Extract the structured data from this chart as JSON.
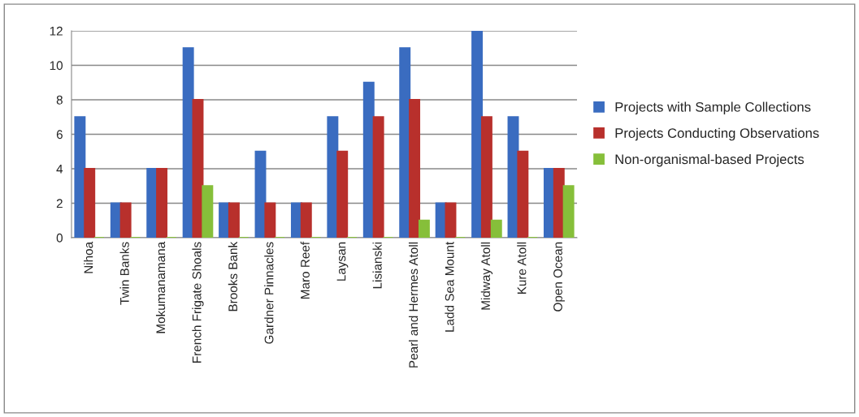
{
  "chart_data": {
    "type": "bar",
    "categories": [
      "Nihoa",
      "Twin Banks",
      "Mokumanamana",
      "French Frigate Shoals",
      "Brooks Bank",
      "Gardner Pinnacles",
      "Maro Reef",
      "Laysan",
      "Lisianski",
      "Pearl and Hermes Atoll",
      "Ladd Sea Mount",
      "Midway Atoll",
      "Kure Atoll",
      "Open Ocean"
    ],
    "series": [
      {
        "name": "Projects with Sample Collections",
        "color": "#3a6cc0",
        "values": [
          7,
          2,
          4,
          11,
          2,
          5,
          2,
          7,
          9,
          11,
          2,
          12,
          7,
          4
        ]
      },
      {
        "name": "Projects Conducting Observations",
        "color": "#b8302c",
        "values": [
          4,
          2,
          4,
          8,
          2,
          2,
          2,
          5,
          7,
          8,
          2,
          7,
          5,
          4
        ]
      },
      {
        "name": "Non-organismal-based Projects",
        "color": "#86bf3a",
        "values": [
          0,
          0,
          0,
          3,
          0,
          0,
          0,
          0,
          0,
          1,
          0,
          1,
          0,
          3
        ]
      }
    ],
    "ylim": [
      0,
      12
    ],
    "yticks": [
      0,
      2,
      4,
      6,
      8,
      10,
      12
    ],
    "grid": "y",
    "legend": "right"
  }
}
